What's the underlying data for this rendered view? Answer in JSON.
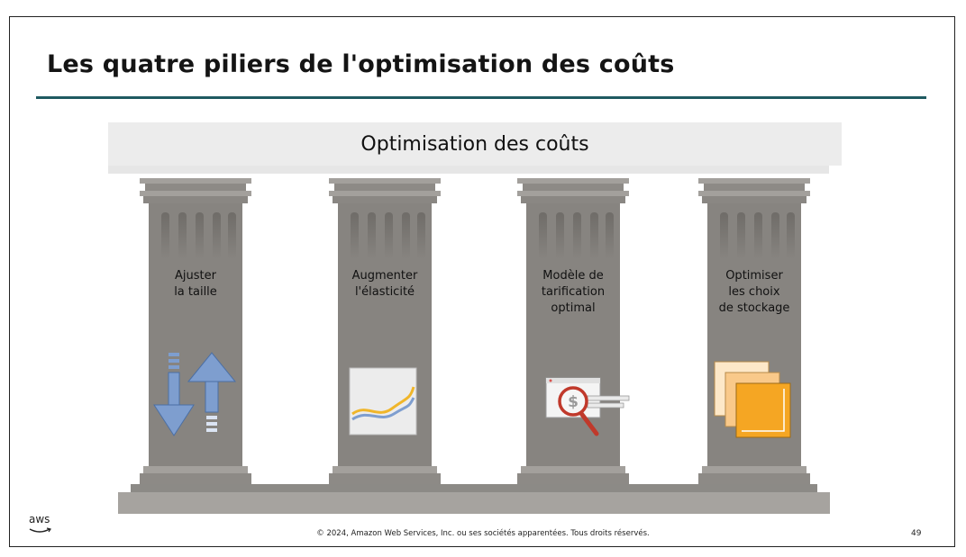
{
  "slide": {
    "title": "Les quatre piliers de l'optimisation des coûts",
    "banner": "Optimisation des coûts",
    "pillars": [
      {
        "lines": [
          "Ajuster",
          "la taille"
        ],
        "icon": "resize-arrows-icon"
      },
      {
        "lines": [
          "Augmenter",
          "l'élasticité"
        ],
        "icon": "elasticity-chart-icon"
      },
      {
        "lines": [
          "Modèle de",
          "tarification",
          "optimal"
        ],
        "icon": "pricing-magnifier-icon"
      },
      {
        "lines": [
          "Optimiser",
          "les choix",
          "de stockage"
        ],
        "icon": "stacked-storage-icon"
      }
    ],
    "footer": "© 2024, Amazon Web Services, Inc. ou ses sociétés apparentées. Tous droits réservés.",
    "page_number": "49",
    "logo_text": "aws"
  },
  "colors": {
    "title_rule": "#1f5a61",
    "pillar": "#878480",
    "banner": "#ececec",
    "arrow_blue": "#7e9ecf",
    "storage_orange": "#f5a623"
  }
}
